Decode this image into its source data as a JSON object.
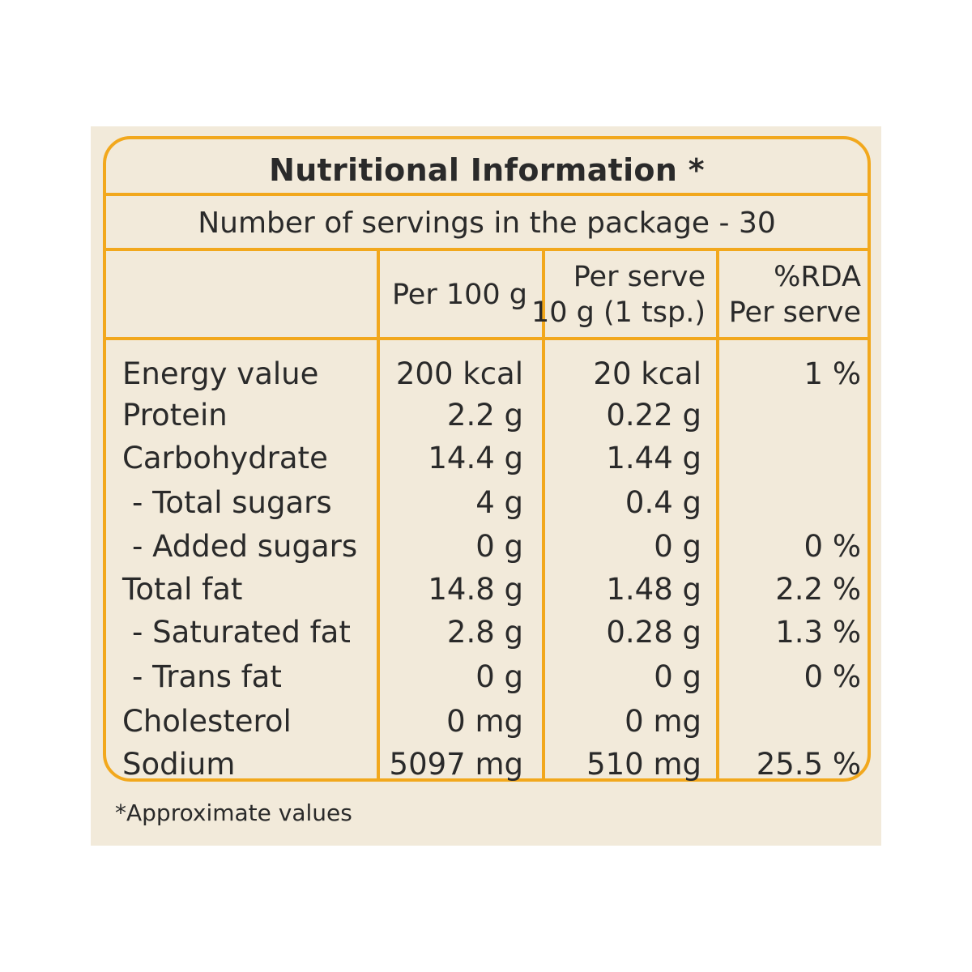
{
  "title": "Nutritional Information *",
  "servings": "Number of servings in the package - 30",
  "columns": {
    "per100": "Per 100 g",
    "per_serve_line1": "Per serve",
    "per_serve_line2": "10 g (1 tsp.)",
    "rda_line1": "%RDA",
    "rda_line2": "Per serve"
  },
  "rows": [
    {
      "label": "Energy value",
      "per100": "200 kcal",
      "serve": "20 kcal",
      "rda": "1 %"
    },
    {
      "label": "Protein",
      "per100": "2.2 g",
      "serve": "0.22 g",
      "rda": ""
    },
    {
      "label": "Carbohydrate",
      "per100": "14.4 g",
      "serve": "1.44 g",
      "rda": ""
    },
    {
      "label": " - Total sugars",
      "per100": "4 g",
      "serve": "0.4 g",
      "rda": ""
    },
    {
      "label": " - Added sugars",
      "per100": "0 g",
      "serve": "0 g",
      "rda": "0 %"
    },
    {
      "label": "Total fat",
      "per100": "14.8 g",
      "serve": "1.48 g",
      "rda": "2.2 %"
    },
    {
      "label": " - Saturated fat",
      "per100": "2.8 g",
      "serve": "0.28 g",
      "rda": "1.3 %"
    },
    {
      "label": " - Trans fat",
      "per100": "0 g",
      "serve": "0 g",
      "rda": "0 %"
    },
    {
      "label": "Cholesterol",
      "per100": "0 mg",
      "serve": "0 mg",
      "rda": ""
    },
    {
      "label": "Sodium",
      "per100": "5097 mg",
      "serve": "510 mg",
      "rda": "25.5 %"
    }
  ],
  "footnote": "*Approximate values",
  "colors": {
    "border": "#f2a81d",
    "background": "#f2eada",
    "text": "#2a2a2a"
  }
}
